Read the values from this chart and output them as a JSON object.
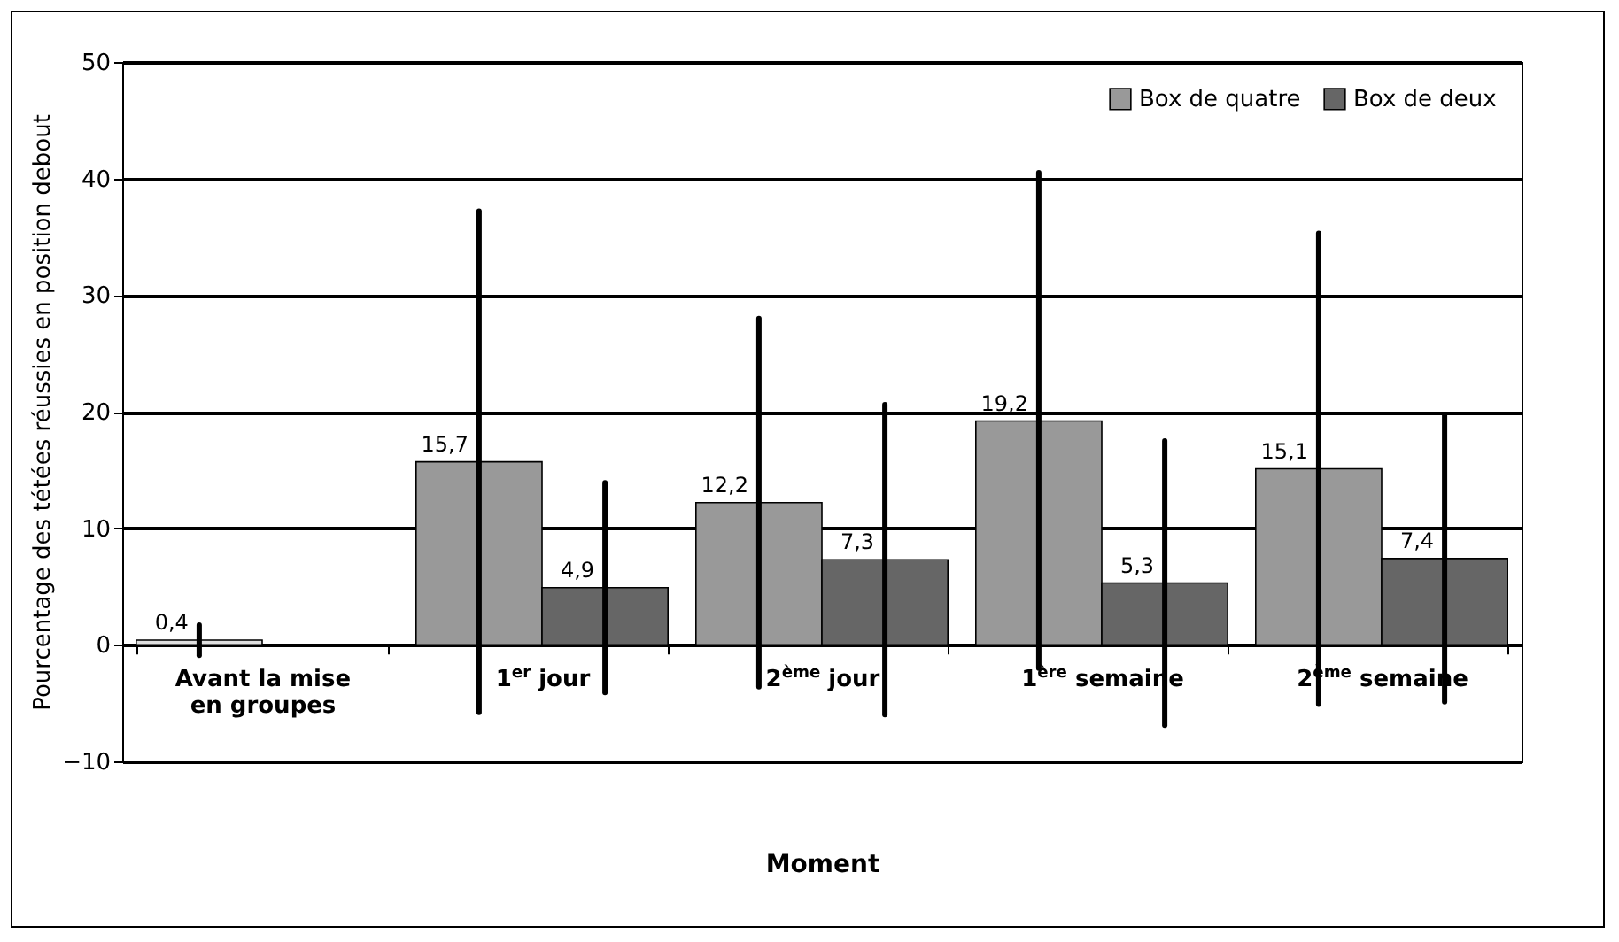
{
  "chart_data": {
    "type": "bar",
    "xlabel": "Moment",
    "ylabel": "Pourcentage des tétées réussies en position debout",
    "categories": [
      "Avant la mise en groupes",
      "1$^{er}$ jour",
      "2$^{ème}$ jour",
      "1$^{ère}$ semaine",
      "2$^{ème}$ semaine"
    ],
    "series": [
      {
        "name": "Box de quatre",
        "color": "#999999",
        "colors": [
          "#e0e0e0",
          "#999999",
          "#999999",
          "#999999",
          "#999999"
        ],
        "values": [
          0.4,
          15.7,
          12.2,
          19.2,
          15.1
        ],
        "value_labels": [
          "0,4",
          "15,7",
          "12,2",
          "19,2",
          "15,1"
        ],
        "errors": [
          [
            -0.9,
            1.7
          ],
          [
            -5.8,
            37.2
          ],
          [
            -3.6,
            28.0
          ],
          [
            -2.0,
            40.5
          ],
          [
            -5.1,
            35.3
          ]
        ]
      },
      {
        "name": "Box de deux",
        "color": "#666666",
        "values": [
          null,
          4.9,
          7.3,
          5.3,
          7.4
        ],
        "value_labels": [
          null,
          "4,9",
          "7,3",
          "5,3",
          "7,4"
        ],
        "errors": [
          null,
          [
            -4.1,
            13.9
          ],
          [
            -6.0,
            20.6
          ],
          [
            -6.9,
            17.5
          ],
          [
            -4.9,
            19.7
          ]
        ]
      }
    ],
    "ylim": [
      -10,
      50
    ],
    "yticks": [
      -10,
      0,
      10,
      20,
      30,
      40,
      50
    ],
    "grid": "y",
    "legend": "top right"
  }
}
